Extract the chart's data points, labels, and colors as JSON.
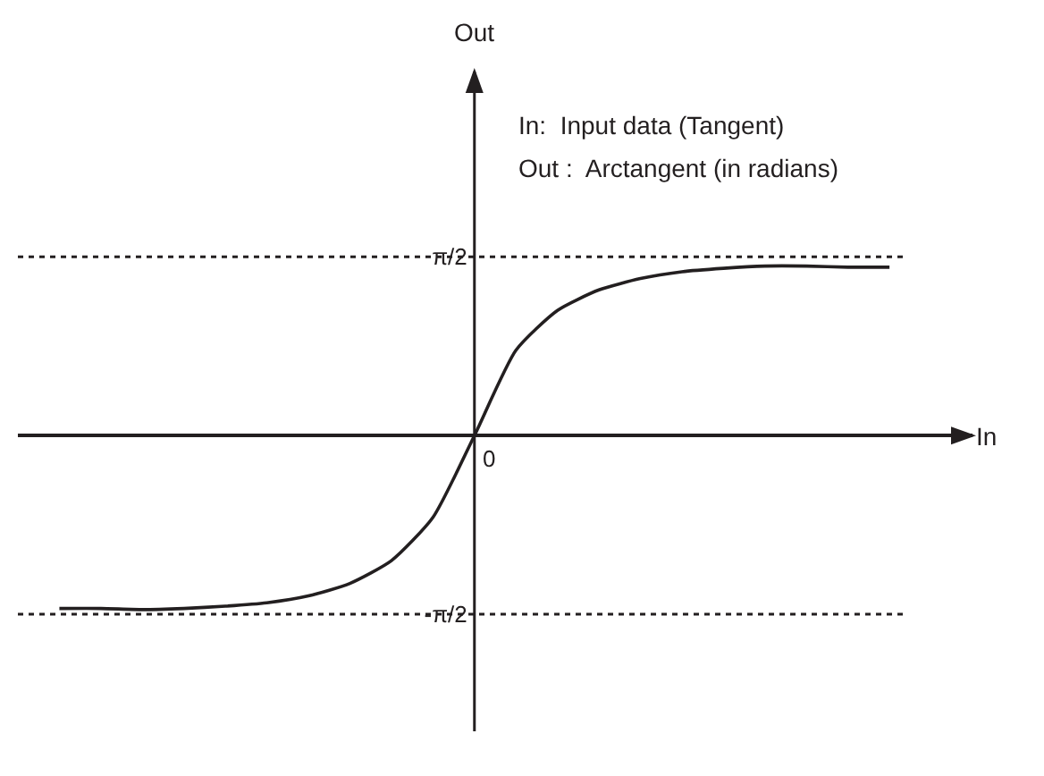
{
  "chart_data": {
    "type": "line",
    "xlabel": "In",
    "ylabel": "Out",
    "categories": [
      null,
      null,
      null,
      null,
      null,
      null,
      null,
      null,
      null,
      null,
      null,
      null,
      null,
      null,
      null,
      null,
      null,
      null,
      null,
      null,
      null
    ],
    "series": [
      {
        "color": "#231f20",
        "values": [
          -1.52,
          -1.52,
          -1.53,
          -1.52,
          -1.5,
          -1.47,
          -1.41,
          -1.3,
          -1.1,
          -0.72,
          0,
          0.75,
          1.1,
          1.28,
          1.38,
          1.44,
          1.47,
          1.49,
          1.49,
          1.48,
          1.48
        ]
      }
    ],
    "ylim": [
      -2.6,
      3.2
    ],
    "yticks": [
      {
        "value": -1.5708,
        "label": "-π/2"
      },
      {
        "value": 1.5708,
        "label": "π/2"
      }
    ],
    "ref_lines": [
      {
        "axis": "y",
        "value": 1.5708,
        "line_style": "dotted",
        "color": "#231f20"
      },
      {
        "axis": "y",
        "value": -1.5708,
        "line_style": "dotted",
        "color": "#231f20"
      }
    ],
    "annotations": [
      "In:  Input data (Tangent)",
      "Out :  Arctangent (in radians)",
      "0"
    ],
    "grid": false,
    "marker": "none",
    "line_style": "solid"
  }
}
